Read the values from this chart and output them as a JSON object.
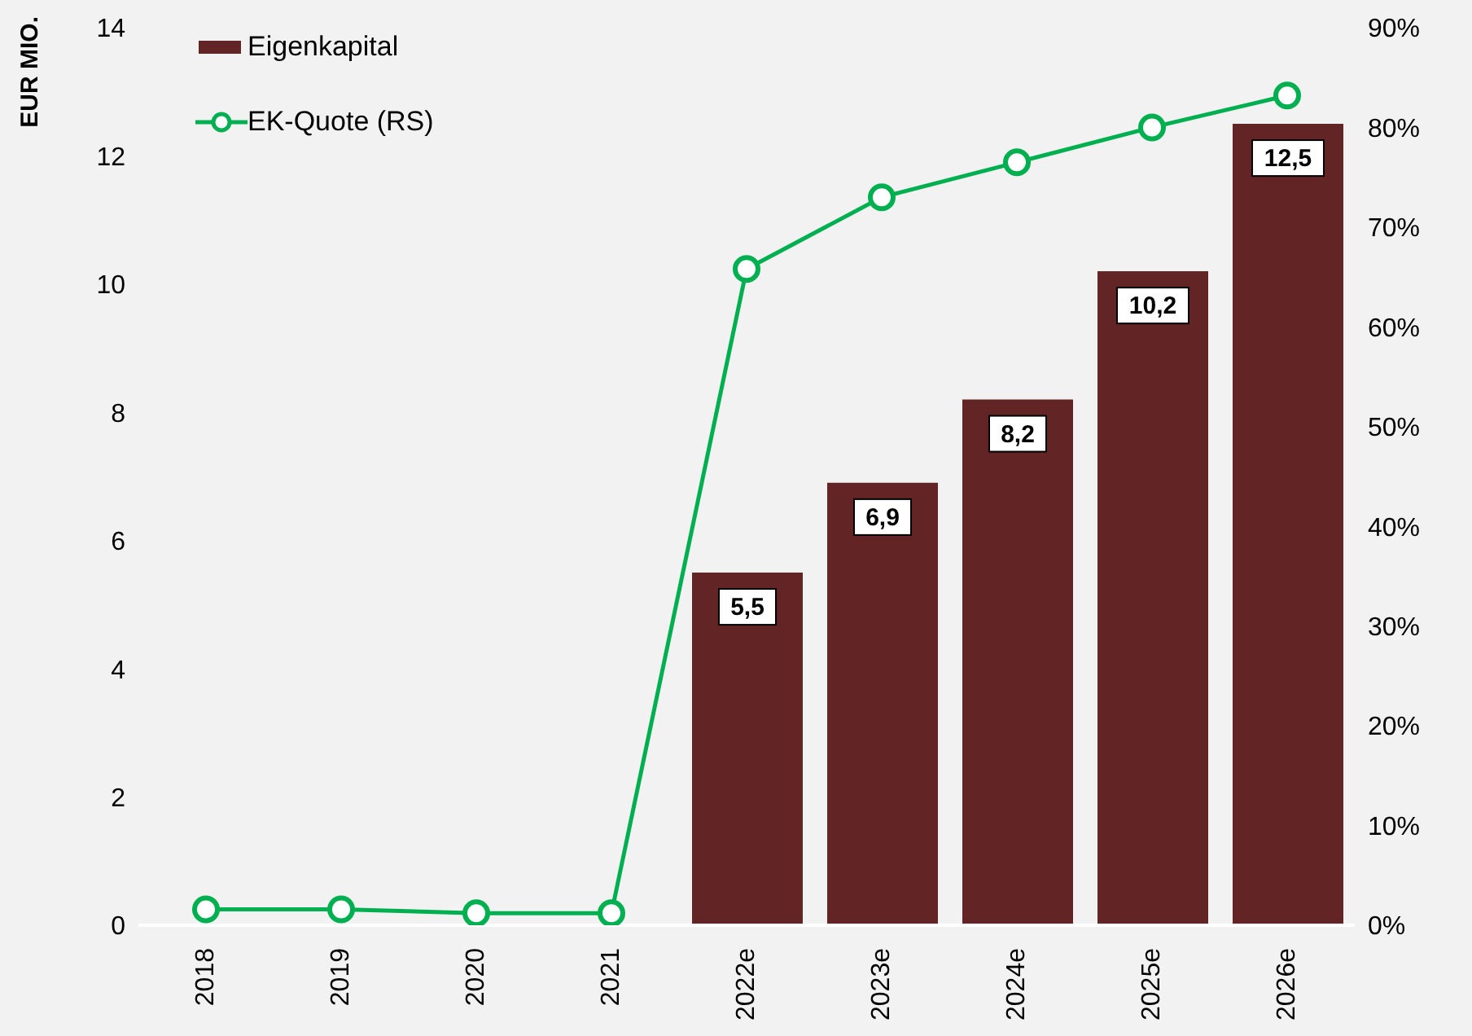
{
  "chart_data": {
    "type": "bar",
    "ylabel": "EUR MIO.",
    "categories": [
      "2018",
      "2019",
      "2020",
      "2021",
      "2022e",
      "2023e",
      "2024e",
      "2025e",
      "2026e"
    ],
    "series": [
      {
        "name": "Eigenkapital",
        "color": "#622424",
        "values": [
          null,
          null,
          null,
          null,
          5.5,
          6.9,
          8.2,
          10.2,
          12.5
        ],
        "value_labels": [
          null,
          null,
          null,
          null,
          "5,5",
          "6,9",
          "8,2",
          "10,2",
          "12,5"
        ]
      },
      {
        "name": "EK-Quote (RS)",
        "type": "line",
        "axis": "y2",
        "color": "#00b050",
        "marker": "circle",
        "values": [
          1.6,
          1.6,
          1.2,
          1.2,
          65.8,
          73,
          76.5,
          80,
          83.2
        ]
      }
    ],
    "ylim": [
      0,
      14
    ],
    "yticks": [
      0,
      2,
      4,
      6,
      8,
      10,
      12,
      14
    ],
    "y2lim": [
      0,
      90
    ],
    "y2ticks": [
      {
        "value": 0,
        "label": "0%"
      },
      {
        "value": 10,
        "label": "10%"
      },
      {
        "value": 20,
        "label": "20%"
      },
      {
        "value": 30,
        "label": "30%"
      },
      {
        "value": 40,
        "label": "40%"
      },
      {
        "value": 50,
        "label": "50%"
      },
      {
        "value": 60,
        "label": "60%"
      },
      {
        "value": 70,
        "label": "70%"
      },
      {
        "value": 80,
        "label": "80%"
      },
      {
        "value": 90,
        "label": "90%"
      }
    ],
    "grid": false,
    "legend": "top left"
  }
}
